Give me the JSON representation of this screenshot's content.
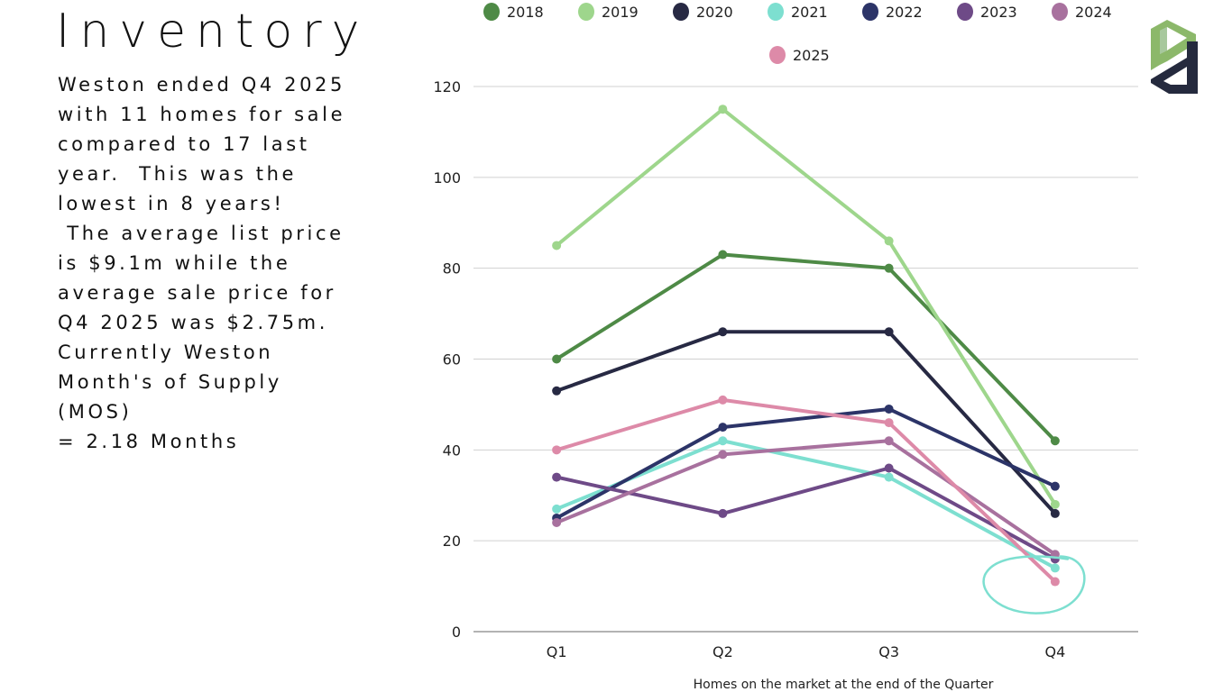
{
  "page": {
    "title": "Inventory",
    "summary_lines": [
      "Weston ended Q4 2025",
      "with 11 homes for sale",
      "compared to 17 last",
      "year.  This was the",
      "lowest in 8 years!",
      " The average list price",
      "is $9.1m while the",
      "average sale price for",
      "Q4 2025 was $2.75m.",
      "Currently Weston",
      "Month's of Supply",
      "(MOS)",
      "= 2.18 Months"
    ],
    "logo": {
      "icon": "pd-logo-icon",
      "colors": {
        "top": "#8cb86a",
        "bottom": "#252a3e"
      }
    }
  },
  "chart_data": {
    "type": "line",
    "title": "",
    "xlabel": "Homes on the market at the end of the Quarter",
    "ylabel": "",
    "categories": [
      "Q1",
      "Q2",
      "Q3",
      "Q4"
    ],
    "ylim": [
      0,
      120
    ],
    "yticks": [
      0,
      20,
      40,
      60,
      80,
      100,
      120
    ],
    "grid": true,
    "legend_position": "top",
    "series": [
      {
        "name": "2018",
        "color": "#4e8a46",
        "values": [
          60,
          83,
          80,
          42
        ]
      },
      {
        "name": "2019",
        "color": "#9ed68c",
        "values": [
          85,
          115,
          86,
          28
        ]
      },
      {
        "name": "2020",
        "color": "#272943",
        "values": [
          53,
          66,
          66,
          26
        ]
      },
      {
        "name": "2021",
        "color": "#7ddfd0",
        "values": [
          27,
          42,
          34,
          14
        ]
      },
      {
        "name": "2022",
        "color": "#2c3468",
        "values": [
          25,
          45,
          49,
          32
        ]
      },
      {
        "name": "2023",
        "color": "#6e4a87",
        "values": [
          34,
          26,
          36,
          16
        ]
      },
      {
        "name": "2024",
        "color": "#a8719e",
        "values": [
          24,
          39,
          42,
          17
        ]
      },
      {
        "name": "2025",
        "color": "#dd8aa8",
        "values": [
          40,
          51,
          46,
          11
        ]
      }
    ],
    "annotations": [
      {
        "type": "ellipse-highlight",
        "category": "Q4",
        "around_value": 13,
        "color": "#7ddfd0"
      }
    ]
  }
}
